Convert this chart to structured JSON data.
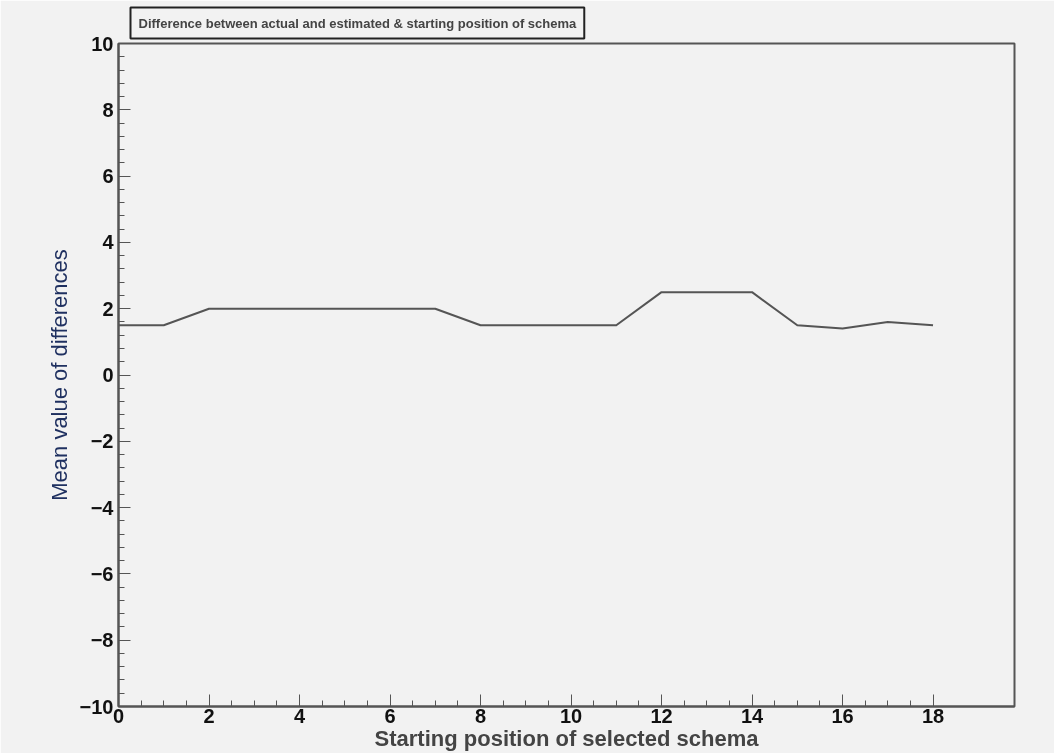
{
  "chart_data": {
    "type": "line",
    "title": "Difference between actual and estimated & starting position of schema",
    "xlabel": "Starting position of selected schema",
    "ylabel": "Mean value of differences",
    "x": [
      0,
      1,
      2,
      3,
      4,
      5,
      6,
      7,
      8,
      9,
      10,
      11,
      12,
      13,
      14,
      15,
      16,
      17,
      18
    ],
    "series": [
      {
        "color": "#555555",
        "values": [
          1.5,
          1.5,
          2,
          2,
          2,
          2,
          2,
          2,
          1.5,
          1.5,
          1.5,
          1.5,
          2.5,
          2.5,
          2.5,
          1.5,
          1.4,
          1.6,
          1.5
        ]
      }
    ],
    "xlim": [
      0,
      19.8
    ],
    "ylim": [
      -10,
      10
    ],
    "xticks": [
      0,
      2,
      4,
      6,
      8,
      10,
      12,
      14,
      16,
      18
    ],
    "yticks": [
      -10,
      -8,
      -6,
      -4,
      -2,
      0,
      2,
      4,
      6,
      8,
      10
    ],
    "grid": false,
    "marker": "none",
    "line_style": "solid"
  }
}
